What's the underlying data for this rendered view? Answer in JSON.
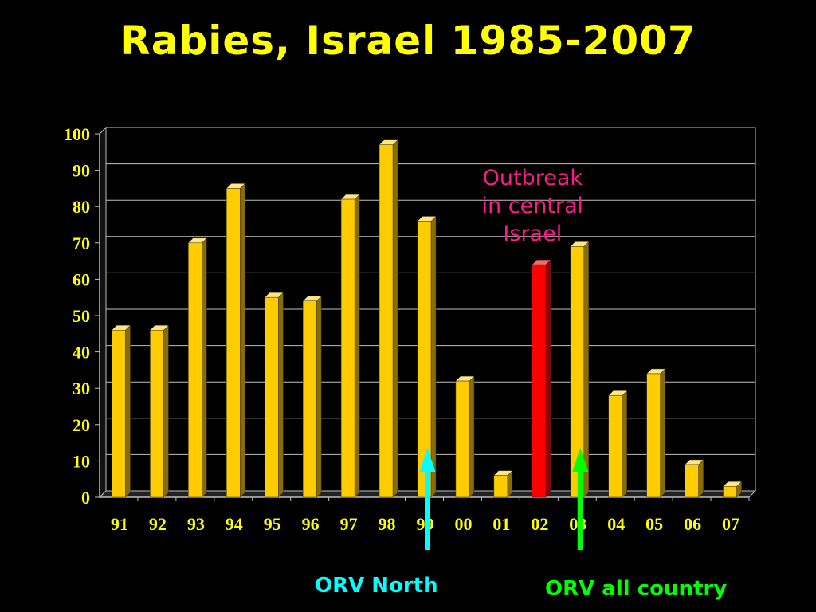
{
  "chart_data": {
    "type": "bar",
    "title": "Rabies, Israel 1985-2007",
    "categories": [
      "91",
      "92",
      "93",
      "94",
      "95",
      "96",
      "97",
      "98",
      "99",
      "00",
      "01",
      "02",
      "03",
      "04",
      "05",
      "06",
      "07"
    ],
    "values": [
      46,
      46,
      70,
      85,
      55,
      54,
      82,
      97,
      76,
      32,
      6,
      64,
      69,
      28,
      34,
      9,
      3
    ],
    "highlight_index": 11,
    "bar_color": "#ffcc00",
    "highlight_color": "#ff0000",
    "ylim": [
      0,
      100
    ],
    "yticks": [
      "0",
      "10",
      "20",
      "30",
      "40",
      "50",
      "60",
      "70",
      "80",
      "90",
      "100"
    ],
    "grid": true,
    "annotations": [
      {
        "lines": [
          "Outbreak",
          "in central",
          "Israel"
        ],
        "color": "#ff1a8c",
        "anchor_category": "02"
      }
    ],
    "markers": [
      {
        "label": "ORV North",
        "color": "#00ffff",
        "anchor_category": "99"
      },
      {
        "label": "ORV all country",
        "color": "#00ff00",
        "anchor_category": "03"
      }
    ]
  }
}
